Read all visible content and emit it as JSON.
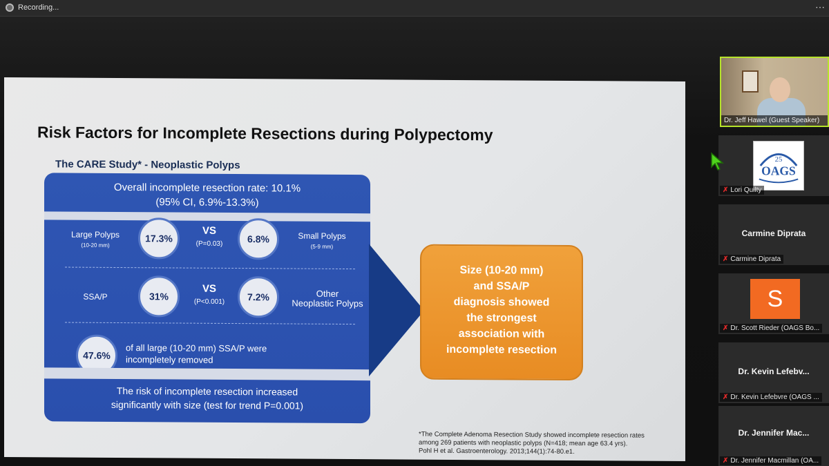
{
  "top_bar": {
    "recording_label": "Recording...",
    "icon": "recording-indicator-icon"
  },
  "slide": {
    "title": "Risk Factors for Incomplete Resections during Polypectomy",
    "subtitle": "The CARE Study* - Neoplastic Polyps",
    "overall_line1": "Overall incomplete resection rate: 10.1%",
    "overall_line2": "(95% CI, 6.9%-13.3%)",
    "row1": {
      "left_label": "Large Polyps",
      "left_sub": "(10-20 mm)",
      "left_value": "17.3%",
      "vs": "VS",
      "p_value": "(P=0.03)",
      "right_value": "6.8%",
      "right_label": "Small Polyps",
      "right_sub": "(5-9 mm)"
    },
    "row2": {
      "left_label": "SSA/P",
      "left_value": "31%",
      "vs": "VS",
      "p_value": "(P<0.001)",
      "right_value": "7.2%",
      "right_label_line1": "Other",
      "right_label_line2": "Neoplastic Polyps"
    },
    "row3": {
      "value": "47.6%",
      "text_line1": "of all large (10-20 mm) SSA/P were",
      "text_line2": "incompletely removed"
    },
    "bottom_line1": "The risk of incomplete resection increased",
    "bottom_line2": "significantly with size (test for trend P=0.001)",
    "conclusion_lines": [
      "Size (10-20 mm)",
      "and SSA/P",
      "diagnosis showed",
      "the strongest",
      "association with",
      "incomplete resection"
    ],
    "footnote_line1": "*The Complete Adenoma Resection Study showed incomplete resection rates",
    "footnote_line2": "among 269 patients with neoplastic polyps (N=418; mean age 63.4 yrs).",
    "footnote_line3": "Pohl H et al. Gastroenterology. 2013;144(1):74-80.e1."
  },
  "participants": {
    "video_name": "Dr. Jeff Hawel (Guest Speaker)",
    "logo_text": "OAGS",
    "logo_number": "25",
    "p1_name": "Lori Quilty",
    "p2_center": "Carmine Diprata",
    "p2_name": "Carmine Diprata",
    "p3_avatar": "S",
    "p3_name": "Dr. Scott Rieder (OAGS Bo...",
    "p4_center": "Dr. Kevin Lefebv...",
    "p4_name": "Dr. Kevin Lefebvre (OAGS ...",
    "p5_center": "Dr. Jennifer Mac...",
    "p5_name": "Dr. Jennifer Macmillan (OA...",
    "mic_icon": "muted-mic-icon"
  },
  "colors": {
    "slide_blue": "#2a4fad",
    "orange": "#e88c23",
    "arrow_navy": "#173b86",
    "active_speaker_border": "#b6e32b",
    "avatar_orange": "#f26a22"
  }
}
